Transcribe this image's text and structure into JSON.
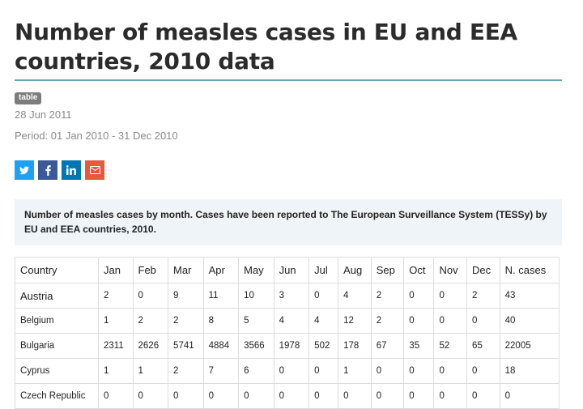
{
  "title": "Number of measles cases in EU and EEA countries, 2010 data",
  "badge": "table",
  "date": "28 Jun 2011",
  "period": "Period: 01 Jan 2010 - 31 Dec 2010",
  "share": [
    {
      "name": "twitter",
      "icon": "twitter-icon",
      "color": "#1da1f2"
    },
    {
      "name": "facebook",
      "icon": "facebook-icon",
      "color": "#3b5998"
    },
    {
      "name": "linkedin",
      "icon": "linkedin-icon",
      "color": "#0077b5"
    },
    {
      "name": "email",
      "icon": "email-icon",
      "color": "#e8583a"
    }
  ],
  "colors": {
    "title_rule": "#69a8b3",
    "caption_bg": "#eef4f7",
    "badge_bg": "#7c7c7c"
  },
  "caption": "Number of measles cases by month. Cases have been reported to The European Surveillance System (TESSy) by EU and EEA countries, 2010.",
  "table": {
    "headers": [
      "Country",
      "Jan",
      "Feb",
      "Mar",
      "Apr",
      "May",
      "Jun",
      "Jul",
      "Aug",
      "Sep",
      "Oct",
      "Nov",
      "Dec",
      "N. cases"
    ],
    "rows": [
      [
        "Austria",
        "2",
        "0",
        "9",
        "11",
        "10",
        "3",
        "0",
        "4",
        "2",
        "0",
        "0",
        "2",
        "43"
      ],
      [
        "Belgium",
        "1",
        "2",
        "2",
        "8",
        "5",
        "4",
        "4",
        "12",
        "2",
        "0",
        "0",
        "0",
        "40"
      ],
      [
        "Bulgaria",
        "2311",
        "2626",
        "5741",
        "4884",
        "3566",
        "1978",
        "502",
        "178",
        "67",
        "35",
        "52",
        "65",
        "22005"
      ],
      [
        "Cyprus",
        "1",
        "1",
        "2",
        "7",
        "6",
        "0",
        "0",
        "1",
        "0",
        "0",
        "0",
        "0",
        "18"
      ],
      [
        "Czech Republic",
        "0",
        "0",
        "0",
        "0",
        "0",
        "0",
        "0",
        "0",
        "0",
        "0",
        "0",
        "0",
        "0"
      ]
    ]
  }
}
